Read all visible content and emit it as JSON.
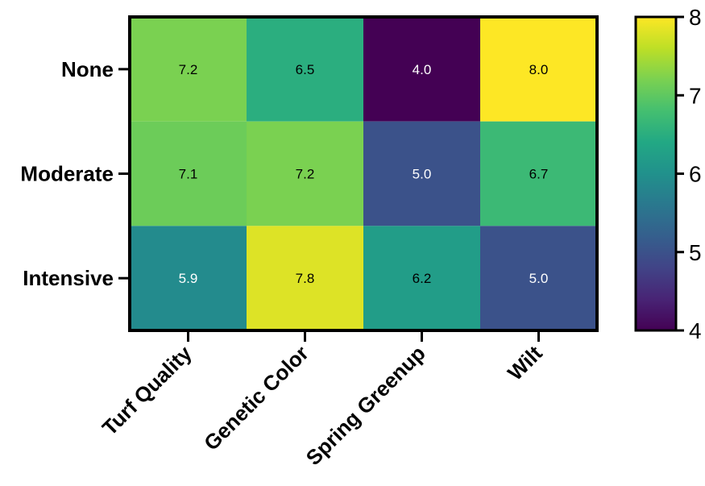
{
  "chart_data": {
    "type": "heatmap",
    "rows": [
      "None",
      "Moderate",
      "Intensive"
    ],
    "columns": [
      "Turf Quality",
      "Genetic Color",
      "Spring Greenup",
      "Wilt"
    ],
    "values": [
      [
        7.2,
        6.5,
        4.0,
        8.0
      ],
      [
        7.1,
        7.2,
        5.0,
        6.7
      ],
      [
        5.9,
        7.8,
        6.2,
        5.0
      ]
    ],
    "value_labels": [
      [
        "7.2",
        "6.5",
        "4.0",
        "8.0"
      ],
      [
        "7.1",
        "7.2",
        "5.0",
        "6.7"
      ],
      [
        "5.9",
        "7.8",
        "6.2",
        "5.0"
      ]
    ],
    "colormap": "viridis",
    "color_range": [
      4,
      8
    ],
    "colorbar_ticks": [
      "4",
      "5",
      "6",
      "7",
      "8"
    ],
    "colorbar_tick_values": [
      4,
      5,
      6,
      7,
      8
    ],
    "title": "",
    "xlabel": "",
    "ylabel": "",
    "grid": false
  }
}
